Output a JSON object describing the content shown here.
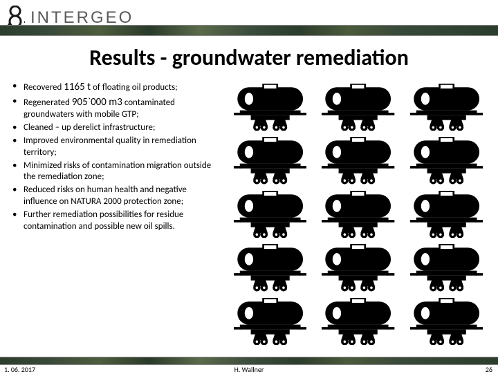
{
  "header": {
    "brand": "INTERGEO",
    "logo_color": "#1a1a1a"
  },
  "title": "Results - groundwater remediation",
  "bullets": [
    {
      "pre": "Recovered ",
      "emph": "1165 t",
      "post": " of floating oil products;"
    },
    {
      "pre": "Regenerated ",
      "emph": "905`000 m3",
      "post": " contaminated groundwaters with mobile GTP;"
    },
    {
      "text": "Cleaned – up derelict infrastructure;"
    },
    {
      "text": "Improved environmental quality in remediation territory;"
    },
    {
      "text": "Minimized risks of contamination migration outside the remediation zone;"
    },
    {
      "text": "Reduced risks on human health and negative influence on NATURA 2000 protection zone;"
    },
    {
      "text": "Further remediation possibilities for residue contamination and  possible new oil spills."
    }
  ],
  "tank_grid": {
    "rows": 5,
    "cols": 3,
    "icon_color": "#000000"
  },
  "footer": {
    "date": "1. 06. 2017",
    "author": "H. Wallner",
    "page": "26"
  },
  "colors": {
    "title": "#000000",
    "text": "#000000",
    "banner_tones": [
      "#2d3d2d",
      "#3a4a3a",
      "#4d5d3d",
      "#2a3a2a",
      "#5a6a4a"
    ]
  },
  "fonts": {
    "title_size_pt": 24,
    "body_size_pt": 10,
    "emph_size_pt": 11
  }
}
